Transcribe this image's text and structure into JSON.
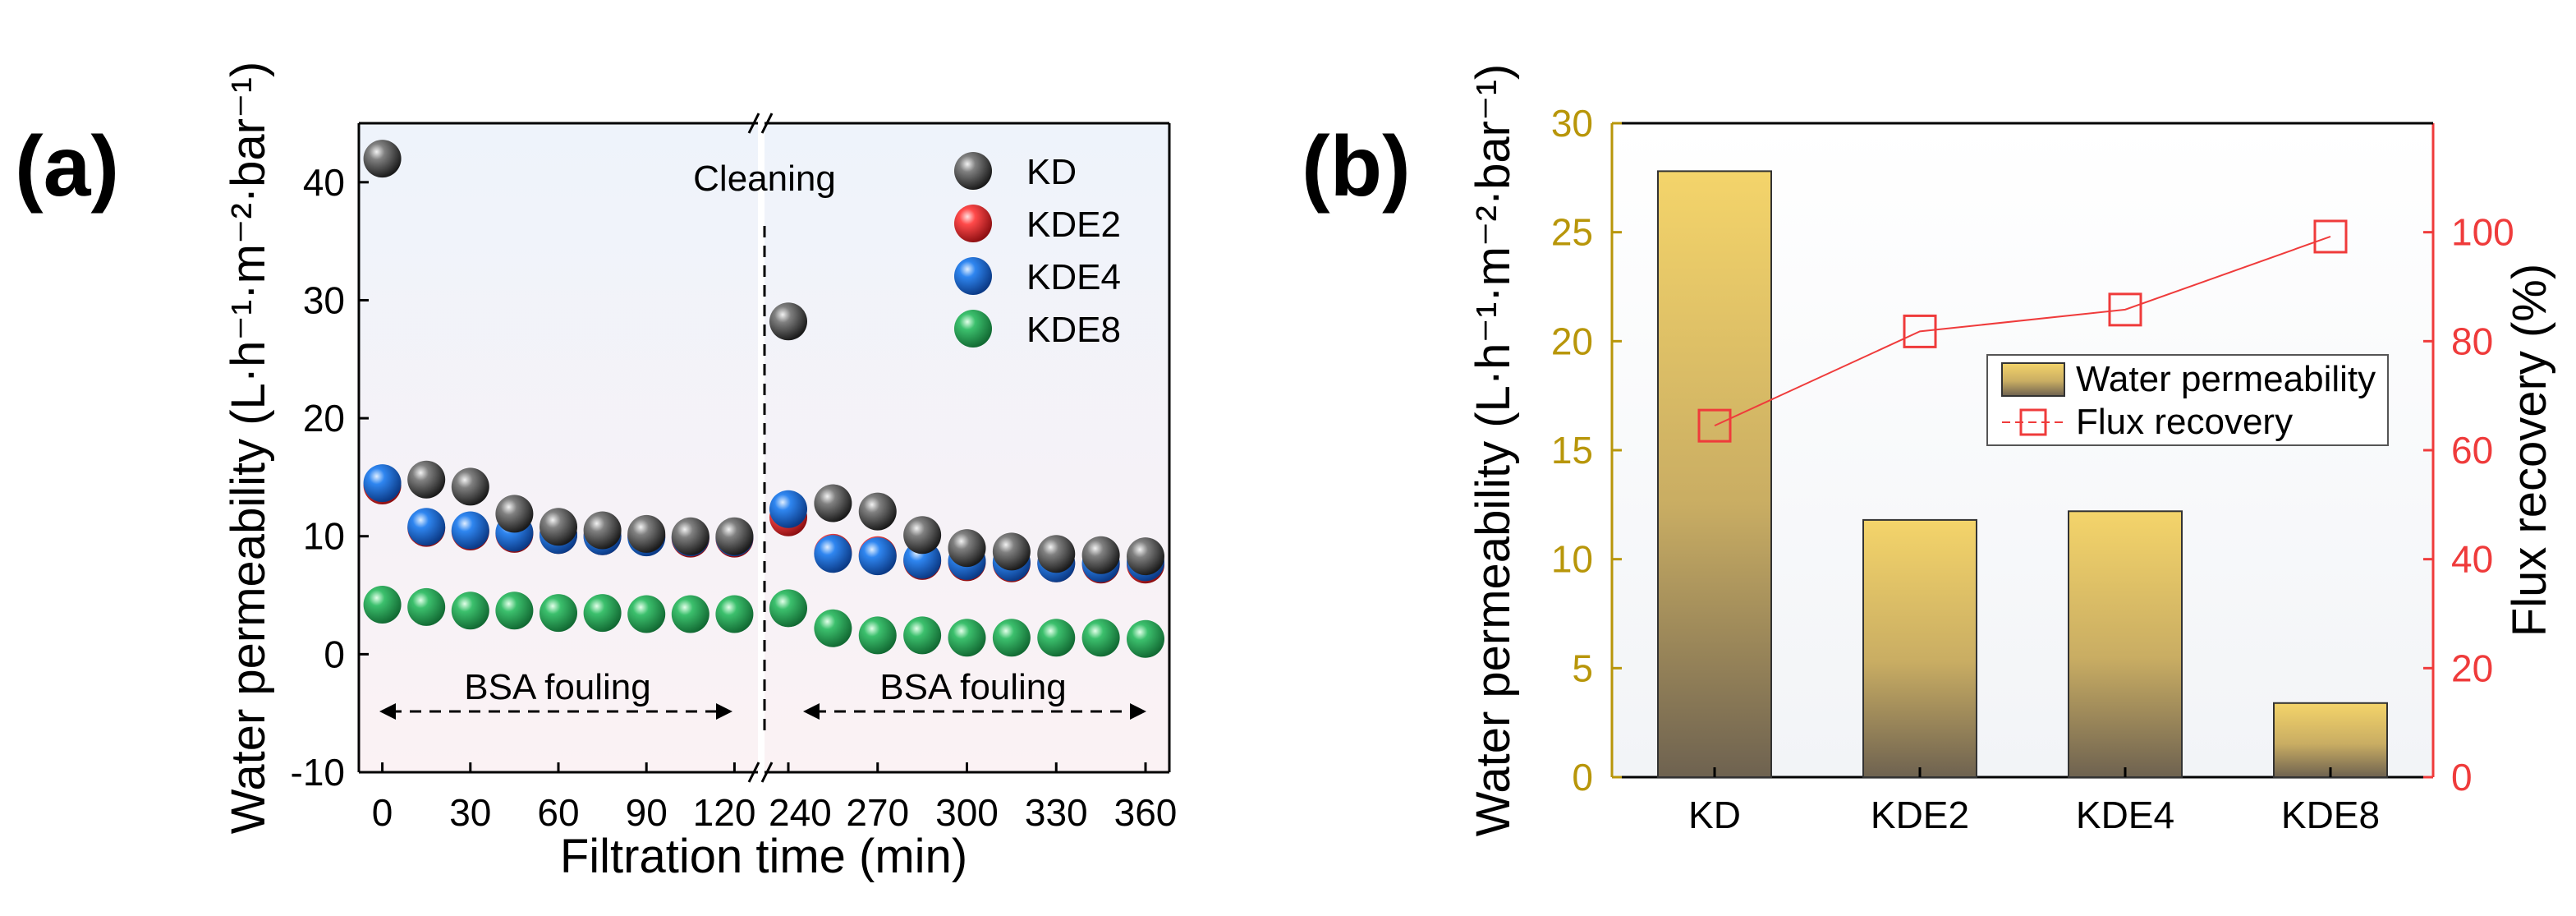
{
  "colors": {
    "KD": "#3a3a3a",
    "KDE2": "#e8292c",
    "KDE4": "#1f6fd6",
    "KDE8": "#2fa85f",
    "left_axis_b": "#b8960a",
    "right_axis_b": "#ef3b3b",
    "bar_top": "#f4d46a",
    "bar_bottom": "#6e6250"
  },
  "chart_data": [
    {
      "panel": "(a)",
      "type": "scatter",
      "title": "",
      "xlabel": "Filtration time (min)",
      "ylabel": "Water permeability (L·h⁻¹·m⁻²·bar⁻¹)",
      "ylim": [
        -10,
        45
      ],
      "yticks": [
        -10,
        0,
        10,
        20,
        30,
        40
      ],
      "xbreak": true,
      "x_segments": [
        {
          "range": [
            -8,
            128
          ],
          "ticks": [
            0,
            30,
            60,
            90,
            120
          ],
          "tick_labels": [
            "0",
            "30",
            "60",
            "90",
            "120"
          ]
        },
        {
          "range": [
            232,
            368
          ],
          "ticks": [
            240,
            270,
            300,
            330,
            360
          ],
          "tick_labels": [
            "240",
            "270",
            "300",
            "330",
            "360"
          ]
        }
      ],
      "annotations": {
        "cleaning": "Cleaning",
        "fouling_left": "BSA fouling",
        "fouling_right": "BSA fouling"
      },
      "series": [
        {
          "name": "KD",
          "x": [
            0,
            240,
            255,
            270,
            285,
            300,
            315,
            330,
            345,
            360
          ],
          "y": [
            42,
            28.2,
            12.8,
            12.1,
            10.1,
            9,
            8.7,
            8.5,
            8.4,
            8.3
          ]
        },
        {
          "name": "KDE2",
          "x": [
            0,
            15,
            30,
            45,
            60,
            75,
            90,
            105,
            120,
            240,
            255,
            270,
            285,
            300,
            315,
            330,
            345,
            360
          ],
          "y": [
            14.3,
            10.7,
            10.4,
            10.2,
            10.1,
            10,
            10,
            9.8,
            9.8,
            11.6,
            8.6,
            8.4,
            7.9,
            7.8,
            7.7,
            7.7,
            7.6,
            7.6
          ]
        },
        {
          "name": "KDE4",
          "x": [
            0,
            15,
            30,
            45,
            60,
            75,
            90,
            105,
            120,
            240,
            255,
            270,
            285,
            300,
            315,
            330,
            345,
            360
          ],
          "y": [
            14.5,
            10.8,
            10.5,
            10.3,
            10.1,
            10,
            9.9,
            9.9,
            9.9,
            12.3,
            8.5,
            8.3,
            8,
            7.9,
            7.8,
            7.7,
            7.7,
            7.8
          ]
        },
        {
          "name": "KDE8",
          "x": [
            0,
            15,
            30,
            45,
            60,
            75,
            90,
            105,
            120,
            240,
            255,
            270,
            285,
            300,
            315,
            330,
            345,
            360
          ],
          "y": [
            4.2,
            4,
            3.7,
            3.7,
            3.5,
            3.5,
            3.4,
            3.4,
            3.4,
            3.9,
            2.2,
            1.6,
            1.6,
            1.4,
            1.4,
            1.4,
            1.4,
            1.3
          ]
        }
      ],
      "extra_points": [
        {
          "name": "KD",
          "x": [
            15,
            30,
            45,
            60,
            75,
            90,
            105,
            120
          ],
          "y": [
            14.8,
            14.2,
            11.9,
            10.8,
            10.5,
            10.2,
            10,
            10
          ]
        }
      ],
      "legend_position": "top-right"
    },
    {
      "panel": "(b)",
      "type": "bar",
      "title": "",
      "categories": [
        "KD",
        "KDE2",
        "KDE4",
        "KDE8"
      ],
      "ylabel": "Water permeability (L·h⁻¹·m⁻²·bar⁻¹)",
      "ylim": [
        0,
        30
      ],
      "yticks": [
        0,
        5,
        10,
        15,
        20,
        25,
        30
      ],
      "y2label": "Flux recovery (%)",
      "y2lim": [
        0,
        120
      ],
      "y2ticks": [
        0,
        20,
        40,
        60,
        80,
        100
      ],
      "series": [
        {
          "name": "Water permeability",
          "type": "bar",
          "axis": "left",
          "values": [
            27.8,
            11.8,
            12.2,
            3.4
          ]
        },
        {
          "name": "Flux recovery",
          "type": "line",
          "axis": "right",
          "values": [
            64.5,
            81.8,
            85.8,
            99.2
          ]
        }
      ],
      "legend_position": "center-right"
    }
  ]
}
